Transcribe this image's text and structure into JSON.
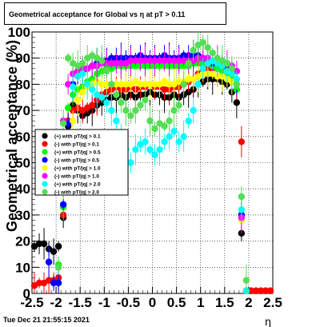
{
  "title": "Geometrical acceptance for Global vs   η at pT > 0.11",
  "timestamp": "Tue Dec 21 21:55:15 2021",
  "chart_data": {
    "type": "scatter",
    "xlabel": "η",
    "ylabel": "Geometrical acceptance (%)",
    "xlim": [
      -2.5,
      2.5
    ],
    "ylim": [
      0,
      100
    ],
    "x_ticks": [
      "-2.5",
      "-2",
      "-1.5",
      "-1",
      "-0.5",
      "0",
      "0.5",
      "1",
      "1.5",
      "2",
      "2.5"
    ],
    "y_ticks": [
      "0",
      "10",
      "20",
      "30",
      "40",
      "50",
      "60",
      "70",
      "80",
      "90",
      "100"
    ],
    "grid": true,
    "legend_position": "left-middle",
    "series": [
      {
        "name": "(+) with pT/|q| > 0.1",
        "color": "#000000",
        "x": [
          -2.45,
          -2.35,
          -2.25,
          -2.15,
          -2.05,
          -1.95,
          -1.85,
          -1.75,
          -1.65,
          -1.55,
          -1.45,
          -1.35,
          -1.25,
          -1.15,
          -1.05,
          -0.95,
          -0.85,
          -0.75,
          -0.65,
          -0.55,
          -0.45,
          -0.35,
          -0.25,
          -0.15,
          -0.05,
          0.05,
          0.15,
          0.25,
          0.35,
          0.45,
          0.55,
          0.65,
          0.75,
          0.85,
          0.95,
          1.05,
          1.15,
          1.25,
          1.35,
          1.45,
          1.55,
          1.65,
          1.75,
          1.85,
          1.95,
          2.05,
          2.15,
          2.25,
          2.35,
          2.45
        ],
        "y": [
          18,
          19,
          19,
          17,
          16,
          18,
          29,
          64,
          72,
          70,
          68,
          69,
          70,
          72,
          73,
          74,
          75,
          75,
          76,
          75,
          76,
          75,
          76,
          76,
          77,
          76,
          76,
          75,
          75,
          76,
          75,
          76,
          77,
          78,
          80,
          81,
          82,
          82,
          82,
          81,
          80,
          77,
          73,
          23,
          1,
          1,
          1,
          1,
          1,
          1
        ]
      },
      {
        "name": "(-) with pT/|q| > 0.1",
        "color": "#ff0000",
        "x": [
          -2.45,
          -2.35,
          -2.25,
          -2.15,
          -2.05,
          -1.95,
          -1.85,
          -1.75,
          -1.65,
          -1.55,
          -1.45,
          -1.35,
          -1.25,
          -1.15,
          -1.05,
          -0.95,
          -0.85,
          -0.75,
          -0.65,
          -0.55,
          -0.45,
          -0.35,
          -0.25,
          -0.15,
          -0.05,
          0.05,
          0.15,
          0.25,
          0.35,
          0.45,
          0.55,
          0.65,
          0.75,
          0.85,
          0.95,
          1.05,
          1.15,
          1.25,
          1.35,
          1.45,
          1.55,
          1.65,
          1.75,
          1.85,
          1.95,
          2.05,
          2.15,
          2.25,
          2.35,
          2.45
        ],
        "y": [
          3,
          4,
          4,
          5,
          5,
          6,
          30,
          66,
          70,
          71,
          70,
          71,
          72,
          74,
          76,
          77,
          78,
          79,
          78,
          78,
          79,
          78,
          79,
          79,
          80,
          79,
          79,
          78,
          78,
          79,
          79,
          80,
          81,
          82,
          84,
          85,
          86,
          86,
          86,
          85,
          84,
          82,
          78,
          58,
          1,
          1,
          1,
          1,
          1,
          1
        ]
      },
      {
        "name": "(+) with pT/|q| > 0.5",
        "color": "#00ff00",
        "x": [
          -1.95,
          -1.85,
          -1.75,
          -1.65,
          -1.55,
          -1.45,
          -1.35,
          -1.25,
          -1.15,
          -1.05,
          -0.95,
          -0.85,
          -0.75,
          -0.65,
          -0.55,
          -0.45,
          -0.35,
          -0.25,
          -0.15,
          -0.05,
          0.05,
          0.15,
          0.25,
          0.35,
          0.45,
          0.55,
          0.65,
          0.75,
          0.85,
          0.95,
          1.05,
          1.15,
          1.25,
          1.35,
          1.45,
          1.55,
          1.65,
          1.75,
          1.85,
          1.95
        ],
        "y": [
          11,
          33,
          71,
          76,
          78,
          79,
          81,
          82,
          84,
          85,
          86,
          86,
          87,
          87,
          87,
          87,
          87,
          87,
          87,
          87,
          87,
          87,
          87,
          87,
          87,
          87,
          87,
          87,
          88,
          88,
          88,
          88,
          87,
          86,
          85,
          84,
          82,
          78,
          30,
          1
        ]
      },
      {
        "name": "(-) with pT/|q| > 0.5",
        "color": "#0000ff",
        "x": [
          -2.15,
          -2.05,
          -1.95,
          -1.85,
          -1.75,
          -1.65,
          -1.55,
          -1.45,
          -1.35,
          -1.25,
          -1.15,
          -1.05,
          -0.95,
          -0.85,
          -0.75,
          -0.65,
          -0.55,
          -0.45,
          -0.35,
          -0.25,
          -0.15,
          -0.05,
          0.05,
          0.15,
          0.25,
          0.35,
          0.45,
          0.55,
          0.65,
          0.75,
          0.85,
          0.95,
          1.05,
          1.15,
          1.25,
          1.35,
          1.45,
          1.55,
          1.65,
          1.75,
          1.85,
          1.95
        ],
        "y": [
          12,
          4,
          4,
          34,
          65,
          80,
          83,
          85,
          86,
          87,
          88,
          89,
          89,
          90,
          90,
          90,
          90,
          90,
          90,
          91,
          90,
          90,
          90,
          90,
          91,
          90,
          90,
          90,
          91,
          91,
          91,
          91,
          90,
          89,
          88,
          88,
          87,
          86,
          85,
          80,
          30,
          1
        ]
      },
      {
        "name": "(+) with pT/|q| > 1.0",
        "color": "#ffff00",
        "x": [
          -1.65,
          -1.55,
          -1.45,
          -1.35,
          -1.25,
          -1.15,
          -1.05,
          -0.95,
          -0.85,
          -0.75,
          -0.65,
          -0.55,
          -0.45,
          -0.35,
          -0.25,
          -0.15,
          -0.05,
          0.05,
          0.15,
          0.25,
          0.35,
          0.45,
          0.55,
          0.65,
          0.75,
          0.85,
          0.95,
          1.05,
          1.15,
          1.25,
          1.35,
          1.45,
          1.55,
          1.65,
          1.75,
          1.85,
          1.95
        ],
        "y": [
          66,
          74,
          77,
          79,
          80,
          81,
          80,
          80,
          80,
          80,
          80,
          80,
          80,
          81,
          80,
          80,
          80,
          80,
          80,
          81,
          80,
          80,
          81,
          81,
          82,
          82,
          83,
          84,
          84,
          84,
          83,
          83,
          82,
          81,
          80,
          28,
          1
        ]
      },
      {
        "name": "(-) with pT/|q| > 1.0",
        "color": "#ff00ff",
        "x": [
          -1.85,
          -1.75,
          -1.65,
          -1.55,
          -1.45,
          -1.35,
          -1.25,
          -1.15,
          -1.05,
          -0.95,
          -0.85,
          -0.75,
          -0.65,
          -0.55,
          -0.45,
          -0.35,
          -0.25,
          -0.15,
          -0.05,
          0.05,
          0.15,
          0.25,
          0.35,
          0.45,
          0.55,
          0.65,
          0.75,
          0.85,
          0.95,
          1.05,
          1.15,
          1.25,
          1.35,
          1.45,
          1.55,
          1.65,
          1.75,
          1.85,
          1.95
        ],
        "y": [
          66,
          80,
          84,
          85,
          86,
          86,
          87,
          87,
          88,
          88,
          88,
          88,
          88,
          88,
          89,
          89,
          89,
          89,
          89,
          89,
          89,
          89,
          89,
          89,
          89,
          89,
          89,
          89,
          90,
          90,
          90,
          89,
          89,
          88,
          88,
          87,
          85,
          29,
          1
        ]
      },
      {
        "name": "(+) with pT/|q| > 2.0",
        "color": "#00ffff",
        "x": [
          -1.65,
          -1.55,
          -1.45,
          -1.35,
          -1.25,
          -1.15,
          -1.05,
          -0.95,
          -0.85,
          -0.75,
          -0.65,
          -0.55,
          -0.45,
          -0.35,
          -0.25,
          -0.15,
          -0.05,
          0.05,
          0.15,
          0.25,
          0.35,
          0.45,
          0.55,
          0.65,
          0.75,
          0.85,
          0.95,
          1.05,
          1.15,
          1.25,
          1.35,
          1.45,
          1.55,
          1.65,
          1.75,
          1.85,
          1.95
        ],
        "y": [
          79,
          83,
          84,
          80,
          78,
          76,
          75,
          73,
          70,
          66,
          60,
          55,
          50,
          55,
          57,
          58,
          55,
          53,
          55,
          58,
          60,
          62,
          58,
          60,
          66,
          70,
          80,
          86,
          88,
          89,
          88,
          87,
          85,
          84,
          82,
          32,
          1
        ]
      },
      {
        "name": "(-) with pT/|q| > 2.0",
        "color": "#55dd55",
        "x": [
          -1.95,
          -1.85,
          -1.75,
          -1.65,
          -1.55,
          -1.45,
          -1.35,
          -1.25,
          -1.15,
          -1.05,
          -0.95,
          -0.85,
          -0.75,
          -0.65,
          -0.55,
          -0.45,
          -0.35,
          -0.25,
          -0.15,
          -0.05,
          0.05,
          0.15,
          0.25,
          0.35,
          0.45,
          0.55,
          0.65,
          0.75,
          0.85,
          0.95,
          1.05,
          1.15,
          1.25,
          1.35,
          1.45,
          1.55,
          1.65,
          1.75,
          1.85,
          1.95
        ],
        "y": [
          10,
          65,
          90,
          88,
          87,
          88,
          90,
          91,
          90,
          89,
          85,
          80,
          76,
          73,
          70,
          68,
          70,
          72,
          74,
          66,
          63,
          65,
          64,
          66,
          70,
          72,
          80,
          88,
          93,
          95,
          96,
          94,
          92,
          90,
          89,
          88,
          86,
          80,
          37,
          5
        ]
      }
    ]
  }
}
